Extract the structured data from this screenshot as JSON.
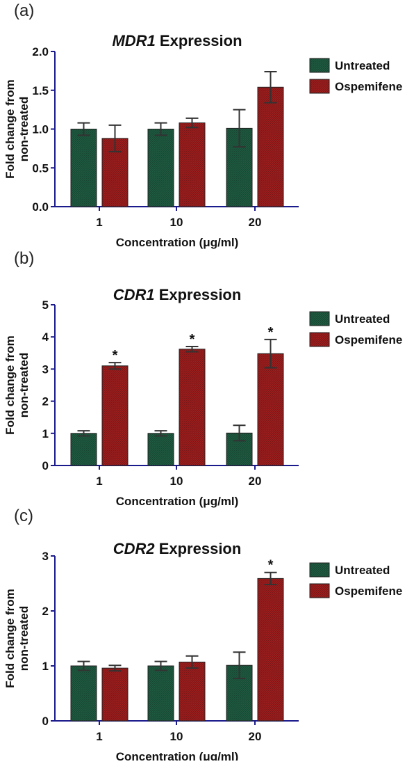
{
  "colors": {
    "untreated": "#1f5c42",
    "ospemifene": "#a01e1e",
    "axis": "#1a1a8c",
    "error": "#333333"
  },
  "chart_data": [
    {
      "type": "bar",
      "panel_label": "(a)",
      "title_italic": "MDR1",
      "title_rest": " Expression",
      "xlabel": "Concentration (μg/ml)",
      "ylabel_lines": [
        "Fold change from",
        "non-treated"
      ],
      "categories": [
        "1",
        "10",
        "20"
      ],
      "ylim": [
        0,
        2.0
      ],
      "yticks": [
        "0.0",
        "0.5",
        "1.0",
        "1.5",
        "2.0"
      ],
      "ytick_values": [
        0,
        0.5,
        1.0,
        1.5,
        2.0
      ],
      "legend_position": "top-right",
      "series": [
        {
          "name": "Untreated",
          "values": [
            1.0,
            1.0,
            1.01
          ],
          "errors": [
            0.08,
            0.08,
            0.24
          ],
          "significant": [
            false,
            false,
            false
          ]
        },
        {
          "name": "Ospemifene",
          "values": [
            0.88,
            1.08,
            1.54
          ],
          "errors": [
            0.17,
            0.06,
            0.2
          ],
          "significant": [
            false,
            false,
            false
          ]
        }
      ],
      "significance_marker": "*"
    },
    {
      "type": "bar",
      "panel_label": "(b)",
      "title_italic": "CDR1",
      "title_rest": " Expression",
      "xlabel": "Concentration (μg/ml)",
      "ylabel_lines": [
        "Fold change from",
        "non-treated"
      ],
      "categories": [
        "1",
        "10",
        "20"
      ],
      "ylim": [
        0,
        5
      ],
      "yticks": [
        "0",
        "1",
        "2",
        "3",
        "4",
        "5"
      ],
      "ytick_values": [
        0,
        1,
        2,
        3,
        4,
        5
      ],
      "legend_position": "top-right",
      "series": [
        {
          "name": "Untreated",
          "values": [
            1.0,
            1.0,
            1.01
          ],
          "errors": [
            0.08,
            0.08,
            0.24
          ],
          "significant": [
            false,
            false,
            false
          ]
        },
        {
          "name": "Ospemifene",
          "values": [
            3.1,
            3.62,
            3.48
          ],
          "errors": [
            0.1,
            0.08,
            0.44
          ],
          "significant": [
            true,
            true,
            true
          ]
        }
      ],
      "significance_marker": "*"
    },
    {
      "type": "bar",
      "panel_label": "(c)",
      "title_italic": "CDR2",
      "title_rest": " Expression",
      "xlabel": "Concentration (μg/ml)",
      "ylabel_lines": [
        "Fold change from",
        "non-treated"
      ],
      "categories": [
        "1",
        "10",
        "20"
      ],
      "ylim": [
        0,
        3
      ],
      "yticks": [
        "0",
        "1",
        "2",
        "3"
      ],
      "ytick_values": [
        0,
        1,
        2,
        3
      ],
      "legend_position": "top-right",
      "series": [
        {
          "name": "Untreated",
          "values": [
            1.0,
            1.0,
            1.01
          ],
          "errors": [
            0.08,
            0.08,
            0.24
          ],
          "significant": [
            false,
            false,
            false
          ]
        },
        {
          "name": "Ospemifene",
          "values": [
            0.96,
            1.07,
            2.59
          ],
          "errors": [
            0.05,
            0.11,
            0.11
          ],
          "significant": [
            false,
            false,
            true
          ]
        }
      ],
      "significance_marker": "*"
    }
  ]
}
